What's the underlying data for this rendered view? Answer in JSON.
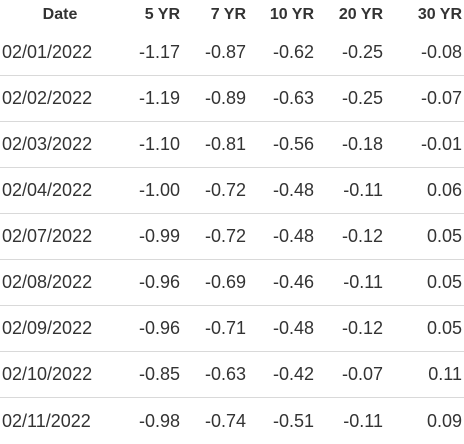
{
  "table": {
    "headers": [
      "Date",
      "5 YR",
      "7 YR",
      "10 YR",
      "20 YR",
      "30 YR"
    ],
    "rows": [
      [
        "02/01/2022",
        "-1.17",
        "-0.87",
        "-0.62",
        "-0.25",
        "-0.08"
      ],
      [
        "02/02/2022",
        "-1.19",
        "-0.89",
        "-0.63",
        "-0.25",
        "-0.07"
      ],
      [
        "02/03/2022",
        "-1.10",
        "-0.81",
        "-0.56",
        "-0.18",
        "-0.01"
      ],
      [
        "02/04/2022",
        "-1.00",
        "-0.72",
        "-0.48",
        "-0.11",
        "0.06"
      ],
      [
        "02/07/2022",
        "-0.99",
        "-0.72",
        "-0.48",
        "-0.12",
        "0.05"
      ],
      [
        "02/08/2022",
        "-0.96",
        "-0.69",
        "-0.46",
        "-0.11",
        "0.05"
      ],
      [
        "02/09/2022",
        "-0.96",
        "-0.71",
        "-0.48",
        "-0.12",
        "0.05"
      ],
      [
        "02/10/2022",
        "-0.85",
        "-0.63",
        "-0.42",
        "-0.07",
        "0.11"
      ],
      [
        "02/11/2022",
        "-0.98",
        "-0.74",
        "-0.51",
        "-0.11",
        "0.09"
      ]
    ]
  }
}
